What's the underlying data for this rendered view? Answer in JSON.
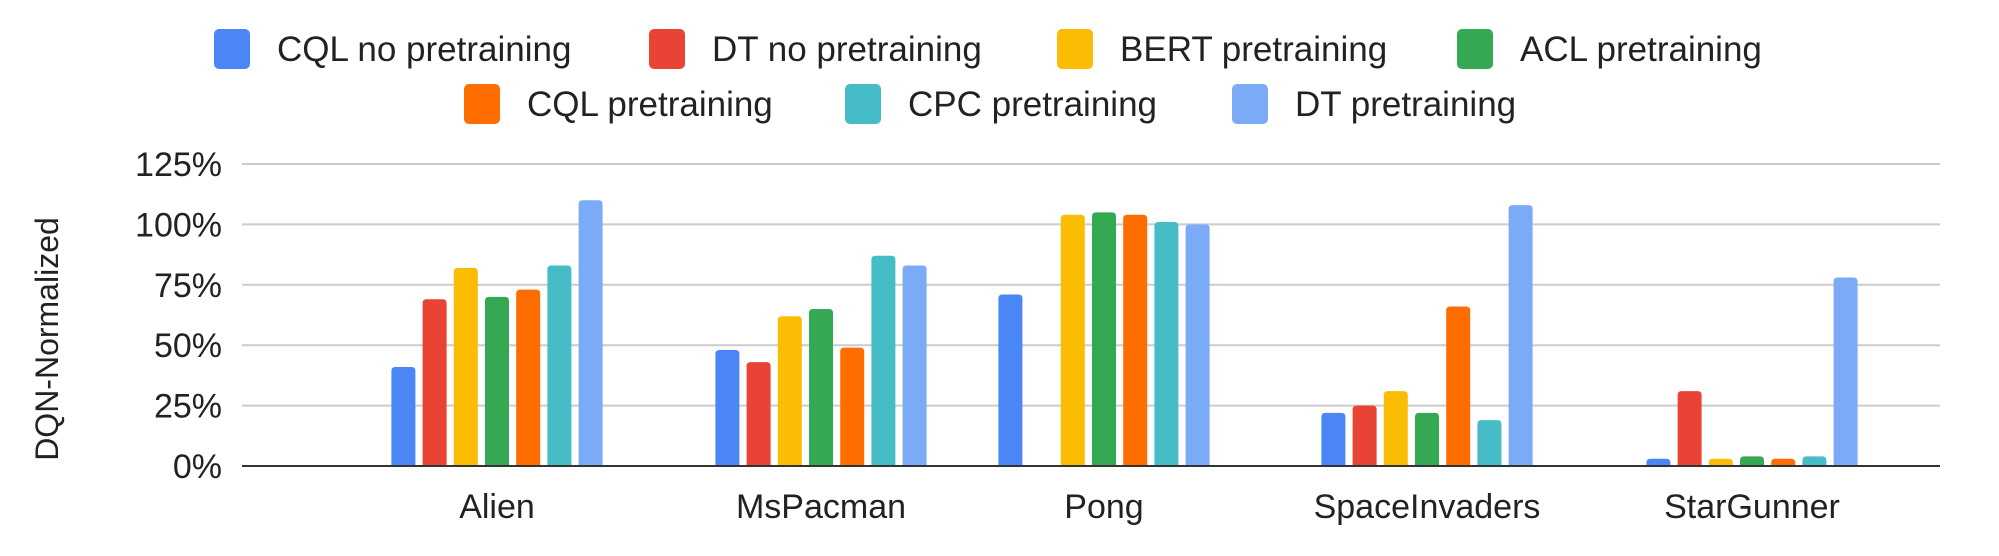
{
  "chart_data": {
    "type": "bar",
    "title": "",
    "xlabel": "",
    "ylabel": "DQN-Normalized",
    "ylim": [
      0,
      125
    ],
    "yticks": [
      "0%",
      "25%",
      "50%",
      "75%",
      "100%",
      "125%"
    ],
    "grid": true,
    "legend_position": "top",
    "categories": [
      "Alien",
      "MsPacman",
      "Pong",
      "SpaceInvaders",
      "StarGunner"
    ],
    "series": [
      {
        "name": "CQL no pretraining",
        "color": "#4a86f5",
        "values": [
          41,
          48,
          71,
          22,
          3
        ]
      },
      {
        "name": "DT no pretraining",
        "color": "#e94335",
        "values": [
          69,
          43,
          0,
          25,
          31
        ]
      },
      {
        "name": "BERT pretraining",
        "color": "#fbbc04",
        "values": [
          82,
          62,
          104,
          31,
          3
        ]
      },
      {
        "name": "ACL pretraining",
        "color": "#34a853",
        "values": [
          70,
          65,
          105,
          22,
          4
        ]
      },
      {
        "name": "CQL pretraining",
        "color": "#ff6d01",
        "values": [
          73,
          49,
          104,
          66,
          3
        ]
      },
      {
        "name": "CPC pretraining",
        "color": "#46bdc6",
        "values": [
          83,
          87,
          101,
          19,
          4
        ]
      },
      {
        "name": "DT pretraining",
        "color": "#7baaf7",
        "values": [
          110,
          83,
          100,
          108,
          78
        ]
      }
    ]
  }
}
